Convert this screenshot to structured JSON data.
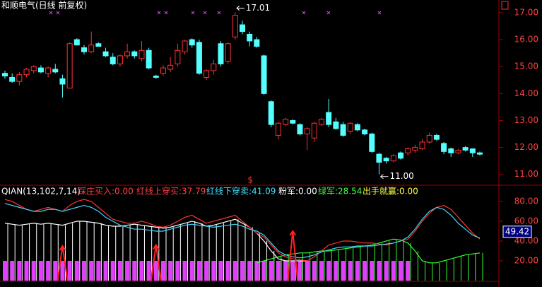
{
  "chart_data": {
    "type": "candlestick",
    "title": "和顺电气(日线 前复权)",
    "up_color": "#ff3232",
    "down_color": "#54ffff",
    "ylim": [
      10.6,
      17.47
    ],
    "yticks": [
      {
        "value": 11,
        "label": "11.00"
      },
      {
        "value": 12,
        "label": "12.00"
      },
      {
        "value": 13,
        "label": "13.00"
      },
      {
        "value": 14,
        "label": "14.00"
      },
      {
        "value": 15,
        "label": "15.00"
      },
      {
        "value": 16,
        "label": "16.00"
      },
      {
        "value": 17,
        "label": "17.00"
      }
    ],
    "open": [
      14.75,
      14.6,
      14.45,
      14.7,
      14.85,
      14.95,
      14.75,
      14.9,
      14.55,
      14.2,
      16.0,
      15.7,
      15.55,
      15.85,
      15.55,
      15.35,
      15.1,
      15.4,
      15.55,
      15.3,
      15.6,
      14.65,
      14.75,
      14.9,
      15.1,
      15.55,
      16.0,
      15.9,
      14.6,
      14.85,
      15.85,
      15.2,
      16.1,
      16.55,
      16.2,
      16.0,
      15.4,
      13.7,
      12.45,
      12.85,
      13.0,
      12.85,
      12.5,
      12.35,
      12.85,
      13.3,
      12.95,
      12.85,
      12.6,
      12.85,
      12.65,
      12.5,
      11.75,
      11.6,
      11.5,
      11.8,
      11.8,
      11.9,
      11.95,
      12.2,
      12.45,
      12.15,
      11.95,
      11.8,
      12.0,
      11.95,
      11.8
    ],
    "high": [
      14.85,
      14.75,
      14.8,
      14.95,
      15.05,
      15.05,
      15.0,
      15.1,
      14.7,
      15.9,
      16.05,
      15.8,
      16.3,
      15.9,
      15.7,
      15.5,
      15.45,
      15.85,
      15.6,
      15.95,
      15.7,
      14.7,
      15.05,
      15.35,
      15.85,
      16.0,
      16.05,
      16.0,
      14.9,
      15.25,
      15.95,
      15.9,
      17.01,
      16.7,
      16.3,
      16.1,
      15.45,
      13.75,
      12.95,
      13.1,
      13.05,
      12.9,
      12.75,
      12.95,
      13.1,
      13.8,
      13.1,
      12.95,
      12.95,
      12.9,
      12.7,
      12.55,
      11.8,
      11.65,
      11.75,
      11.85,
      12.0,
      12.1,
      12.3,
      12.55,
      12.5,
      12.2,
      12.0,
      11.95,
      12.05,
      11.95,
      11.85
    ],
    "low": [
      14.55,
      14.4,
      14.3,
      14.6,
      14.75,
      14.75,
      14.6,
      14.75,
      13.85,
      14.2,
      15.8,
      15.45,
      15.5,
      15.75,
      15.35,
      15.05,
      15.0,
      15.3,
      15.3,
      15.2,
      14.9,
      14.55,
      14.65,
      14.8,
      15.0,
      15.45,
      15.7,
      14.7,
      14.5,
      14.7,
      15.0,
      15.1,
      16.0,
      16.2,
      15.75,
      15.7,
      13.95,
      12.75,
      12.3,
      12.8,
      12.85,
      12.45,
      11.9,
      12.2,
      12.8,
      12.75,
      12.65,
      12.4,
      12.5,
      12.6,
      12.45,
      11.8,
      11.0,
      11.4,
      11.45,
      11.55,
      11.7,
      11.8,
      11.9,
      12.15,
      12.25,
      11.75,
      11.65,
      11.75,
      11.85,
      11.65,
      11.7
    ],
    "close": [
      14.65,
      14.45,
      14.7,
      14.9,
      15.0,
      14.8,
      14.95,
      14.8,
      14.35,
      15.85,
      15.8,
      15.55,
      15.8,
      15.75,
      15.4,
      15.1,
      15.4,
      15.55,
      15.4,
      15.6,
      14.95,
      14.6,
      14.95,
      15.05,
      15.6,
      15.95,
      15.8,
      14.75,
      14.85,
      15.1,
      15.1,
      15.85,
      16.9,
      16.3,
      15.95,
      15.75,
      14.0,
      12.85,
      12.9,
      13.05,
      12.9,
      12.5,
      12.7,
      12.9,
      13.05,
      12.85,
      12.7,
      12.45,
      12.9,
      12.65,
      12.5,
      11.85,
      11.45,
      11.5,
      11.7,
      11.6,
      11.95,
      12.0,
      12.2,
      12.45,
      12.3,
      11.85,
      11.8,
      11.9,
      11.9,
      11.8,
      11.75
    ],
    "annotations": [
      {
        "text": "17.01",
        "value": 17.01
      },
      {
        "text": "11.00",
        "value": 11.0
      },
      {
        "text": "$"
      }
    ],
    "indicator": {
      "name": "QIAN(13,102,7,14)",
      "items": [
        {
          "label": "踩庄买入:0.00",
          "color": "#ff4040"
        },
        {
          "label": "红线上穿买:37.79",
          "color": "#ff4040"
        },
        {
          "label": "红线下穿卖:41.09",
          "color": "#40e0ff"
        },
        {
          "label": "粉军:0.00",
          "color": "#ffffff"
        },
        {
          "label": "绿军:28.54",
          "color": "#40ff40"
        },
        {
          "label": "出手就赢:0.00",
          "color": "#ffff40"
        }
      ],
      "ylim": [
        0,
        96.4
      ],
      "yticks": [
        {
          "value": 20,
          "label": "20.00"
        },
        {
          "value": 40,
          "label": "40.00"
        },
        {
          "value": 60,
          "label": "60.00"
        },
        {
          "value": 80,
          "label": "80.00"
        }
      ],
      "last_value": {
        "value": 49.42,
        "label": "49.42"
      },
      "series": [
        {
          "name": "red",
          "color": "#ff3333",
          "values": [
            82,
            80,
            76,
            72,
            70,
            72,
            74,
            72,
            70,
            76,
            80,
            82,
            80,
            74,
            68,
            62,
            60,
            58,
            58,
            60,
            58,
            55,
            54,
            56,
            60,
            64,
            66,
            62,
            58,
            60,
            62,
            64,
            66,
            60,
            54,
            48,
            44,
            36,
            28,
            24,
            22,
            21,
            20,
            24,
            30,
            36,
            38,
            40,
            40,
            39,
            38,
            38,
            37,
            36,
            38,
            40,
            42,
            50,
            60,
            68,
            74,
            76,
            72,
            64,
            56,
            48,
            42
          ]
        },
        {
          "name": "cyan",
          "color": "#3fd7ff",
          "values": [
            78,
            76,
            74,
            72,
            70,
            70,
            72,
            72,
            70,
            72,
            74,
            76,
            74,
            70,
            64,
            60,
            56,
            54,
            52,
            52,
            51,
            50,
            50,
            52,
            54,
            56,
            57,
            56,
            55,
            54,
            55,
            56,
            57,
            55,
            52,
            50,
            46,
            38,
            30,
            26,
            24,
            23,
            24,
            26,
            29,
            31,
            33,
            34,
            34,
            35,
            35,
            35,
            36,
            37,
            38,
            40,
            44,
            52,
            62,
            70,
            74,
            72,
            66,
            58,
            52,
            46,
            43
          ]
        },
        {
          "name": "white",
          "color": "#ffffff",
          "values": [
            58,
            57,
            56,
            57,
            58,
            57,
            58,
            57,
            56,
            58,
            60,
            60,
            59,
            58,
            56,
            55,
            55,
            56,
            57,
            56,
            55,
            54,
            53,
            54,
            56,
            58,
            60,
            58,
            55,
            56,
            58,
            60,
            62,
            58,
            54,
            48,
            40,
            30,
            22,
            20,
            20,
            20,
            20,
            null,
            null,
            null,
            null,
            null,
            null,
            null,
            null,
            null,
            null,
            null,
            null,
            null,
            null,
            null,
            null,
            null,
            null,
            null,
            null,
            null,
            null,
            null,
            null
          ]
        },
        {
          "name": "green",
          "color": "#33ff33",
          "values": [
            null,
            null,
            null,
            null,
            null,
            null,
            null,
            null,
            null,
            null,
            null,
            null,
            null,
            null,
            null,
            null,
            null,
            null,
            null,
            null,
            null,
            null,
            null,
            null,
            null,
            null,
            null,
            null,
            null,
            null,
            null,
            null,
            null,
            null,
            null,
            18,
            20,
            22,
            24,
            26,
            27,
            28,
            28,
            29,
            30,
            30,
            31,
            32,
            33,
            34,
            35,
            36,
            38,
            40,
            42,
            41,
            38,
            30,
            20,
            18,
            18,
            20,
            22,
            24,
            26,
            27,
            28
          ]
        },
        {
          "name": "pink",
          "color": "#e040fb",
          "values": [
            20,
            20,
            20,
            20,
            20,
            20,
            20,
            20,
            20,
            20,
            20,
            20,
            20,
            20,
            20,
            20,
            20,
            20,
            20,
            20,
            20,
            20,
            20,
            20,
            20,
            20,
            20,
            20,
            20,
            20,
            20,
            20,
            20,
            20,
            20,
            20,
            20,
            20,
            20,
            20,
            20,
            20,
            20,
            20,
            20,
            20,
            20,
            20,
            20,
            20,
            20,
            20,
            20,
            20,
            20,
            20,
            20,
            null,
            null,
            null,
            null,
            null,
            null,
            null,
            null,
            null,
            null
          ]
        },
        {
          "name": "signal",
          "color": "#ff2020",
          "values": [
            null,
            null,
            null,
            null,
            null,
            null,
            null,
            null,
            35,
            null,
            null,
            null,
            null,
            null,
            null,
            null,
            null,
            null,
            null,
            null,
            null,
            36,
            null,
            null,
            null,
            null,
            null,
            null,
            null,
            null,
            null,
            null,
            null,
            null,
            null,
            null,
            null,
            null,
            null,
            null,
            50,
            null,
            null,
            null,
            null,
            null,
            null,
            null,
            null,
            null,
            null,
            null,
            null,
            null,
            null,
            null,
            null,
            null,
            null,
            null,
            null,
            null,
            null,
            null,
            null,
            null,
            null
          ]
        }
      ]
    }
  }
}
